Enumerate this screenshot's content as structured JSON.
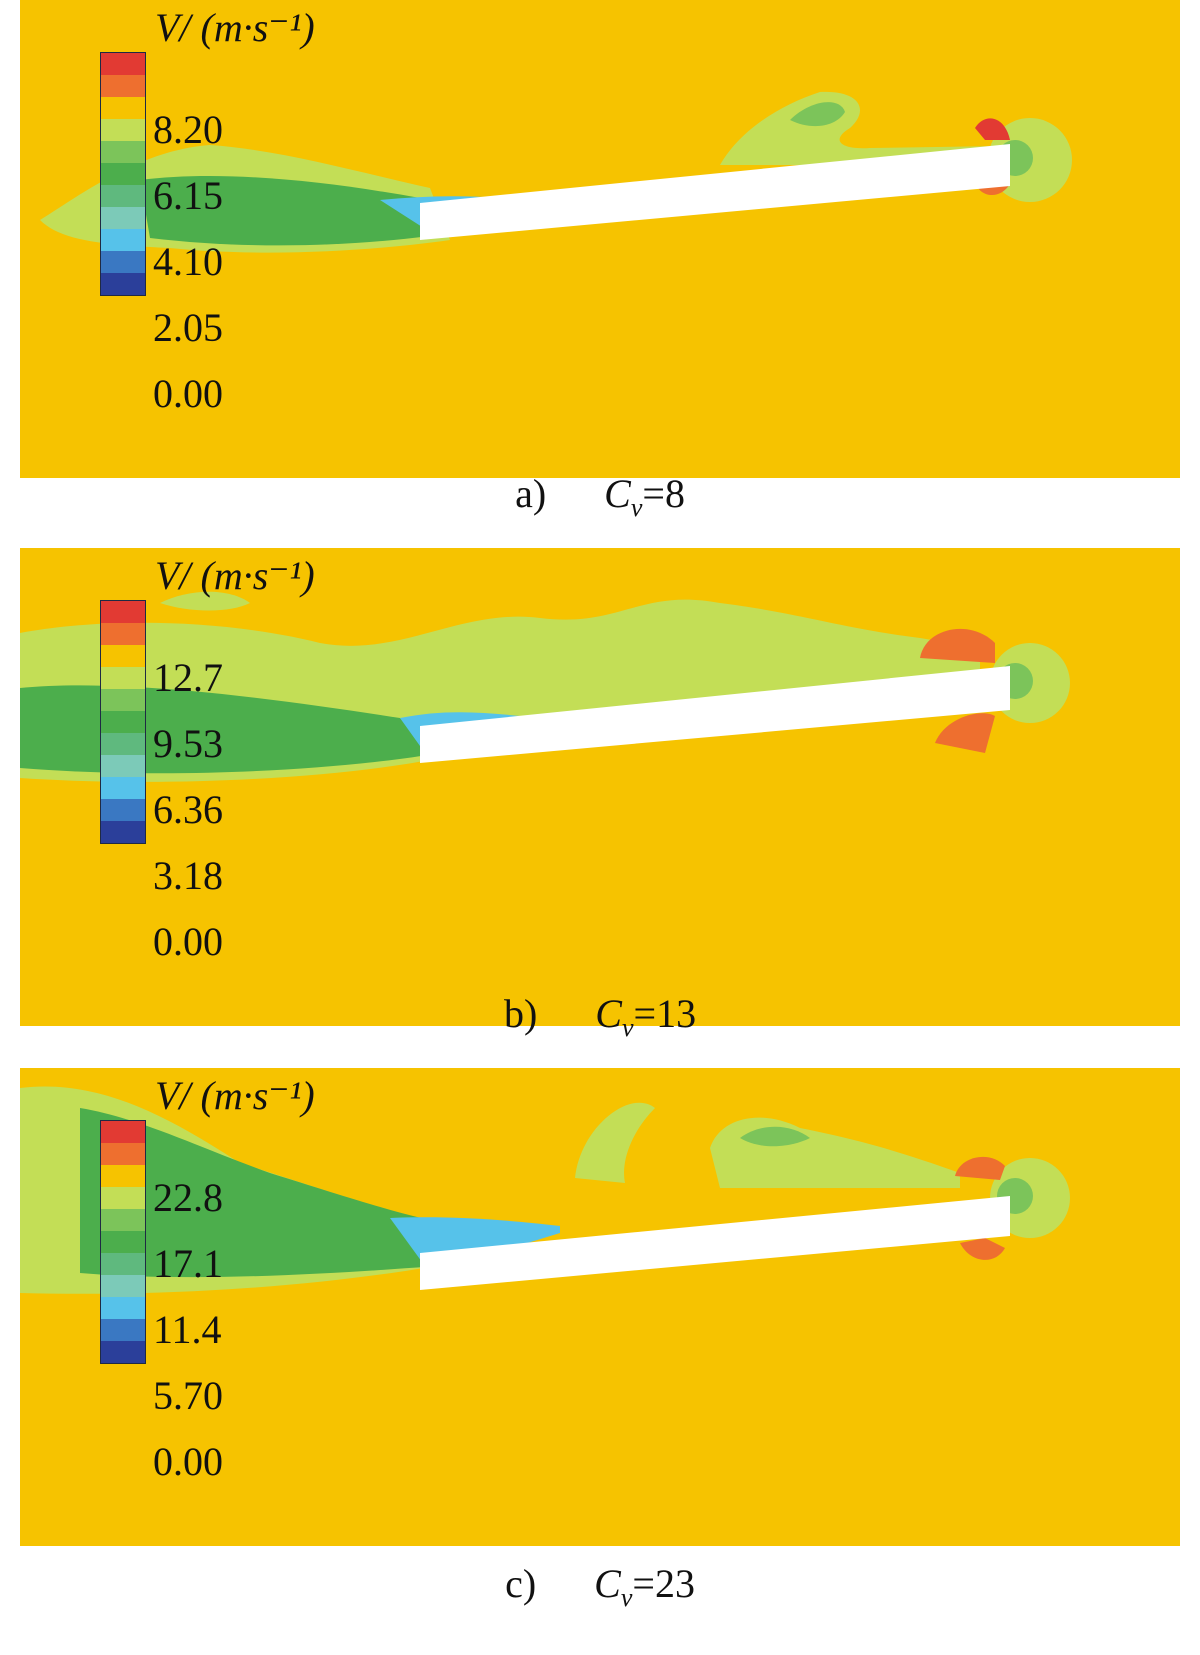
{
  "chart_data": [
    {
      "type": "heatmap",
      "caption": "a)",
      "parameter": {
        "symbol": "C",
        "subscript": "v",
        "value": "8"
      },
      "colorbar_label": "V/ (m·s⁻¹)",
      "colorbar_ticks": [
        "8.20",
        "6.15",
        "4.10",
        "2.05",
        "0.00"
      ],
      "vrange": [
        0,
        10.25
      ]
    },
    {
      "type": "heatmap",
      "caption": "b)",
      "parameter": {
        "symbol": "C",
        "subscript": "v",
        "value": "13"
      },
      "colorbar_label": "V/ (m·s⁻¹)",
      "colorbar_ticks": [
        "12.7",
        "9.53",
        "6.36",
        "3.18",
        "0.00"
      ],
      "vrange": [
        0,
        15.9
      ]
    },
    {
      "type": "heatmap",
      "caption": "c)",
      "parameter": {
        "symbol": "C",
        "subscript": "v",
        "value": "23"
      },
      "colorbar_label": "V/ (m·s⁻¹)",
      "colorbar_ticks": [
        "22.8",
        "17.1",
        "11.4",
        "5.70",
        "0.00"
      ],
      "vrange": [
        0,
        28.5
      ]
    }
  ],
  "colormap": [
    "#e23a33",
    "#ee6f2f",
    "#f6c300",
    "#c3de56",
    "#7cc45a",
    "#4cae4c",
    "#5fb97e",
    "#7ccab8",
    "#56c2ea",
    "#3a78c2",
    "#2b3f9a"
  ],
  "colors": {
    "background": "#f6c300",
    "wake_green": "#4cae4c",
    "light_green": "#c3de56",
    "plate": "#ffffff"
  }
}
